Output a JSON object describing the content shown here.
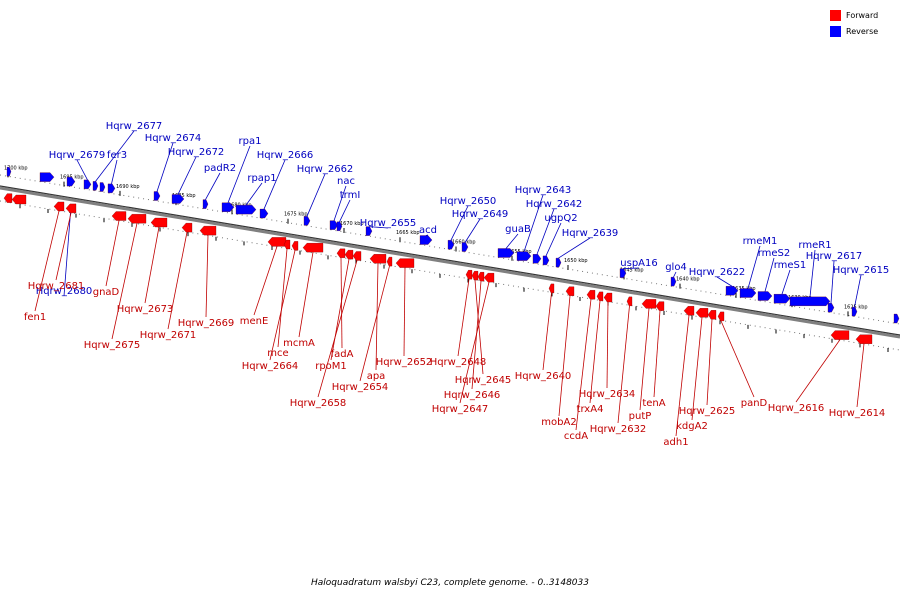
{
  "legend": [
    {
      "label": "Forward",
      "color": "#ff0000"
    },
    {
      "label": "Reverse",
      "color": "#0000ff"
    }
  ],
  "caption": "Haloquadratum walsbyi C23, complete genome. - 0..3148033",
  "colors": {
    "forward_gene": "#ff0000",
    "forward_label": "#c00000",
    "reverse_gene": "#0000ff",
    "reverse_label": "#0000c0",
    "backbone": "#808080"
  },
  "scale_ticks": [
    "1700 kbp",
    "1695 kbp",
    "1690 kbp",
    "1685 kbp",
    "1680 kbp",
    "1675 kbp",
    "1670 kbp",
    "1665 kbp",
    "1660 kbp",
    "1655 kbp",
    "1650 kbp",
    "1645 kbp",
    "1640 kbp",
    "1635 kbp",
    "1630 kbp",
    "1625 kbp"
  ],
  "reverse_genes": [
    "Hqrw_2679",
    "Hqrw_2677",
    "fer3",
    "Hqrw_2674",
    "Hqrw_2672",
    "padR2",
    "rpa1",
    "rpap1",
    "Hqrw_2666",
    "Hqrw_2662",
    "nac",
    "trmI",
    "Hqrw_2655",
    "acd",
    "Hqrw_2650",
    "Hqrw_2649",
    "guaB",
    "Hqrw_2643",
    "Hqrw_2642",
    "ugpQ2",
    "Hqrw_2639",
    "uspA16",
    "glo4",
    "Hqrw_2622",
    "rmeM1",
    "rmeS2",
    "rmeS1",
    "rmeR1",
    "Hqrw_2617",
    "Hqrw_2615",
    "Hqrw_2680"
  ],
  "forward_genes": [
    "Hqrw_2681",
    "fen1",
    "gnaD",
    "Hqrw_2675",
    "Hqrw_2673",
    "Hqrw_2671",
    "Hqrw_2669",
    "menE",
    "mce",
    "Hqrw_2664",
    "mcmA",
    "fadA",
    "rpoM1",
    "Hqrw_2658",
    "apa",
    "Hqrw_2654",
    "Hqrw_2652",
    "Hqrw_2648",
    "Hqrw_2645",
    "Hqrw_2646",
    "Hqrw_2647",
    "Hqrw_2640",
    "mobA2",
    "ccdA",
    "trxA4",
    "Hqrw_2634",
    "Hqrw_2632",
    "putP",
    "tenA",
    "adh1",
    "kdgA2",
    "Hqrw_2625",
    "panD",
    "Hqrw_2616",
    "Hqrw_2614"
  ]
}
